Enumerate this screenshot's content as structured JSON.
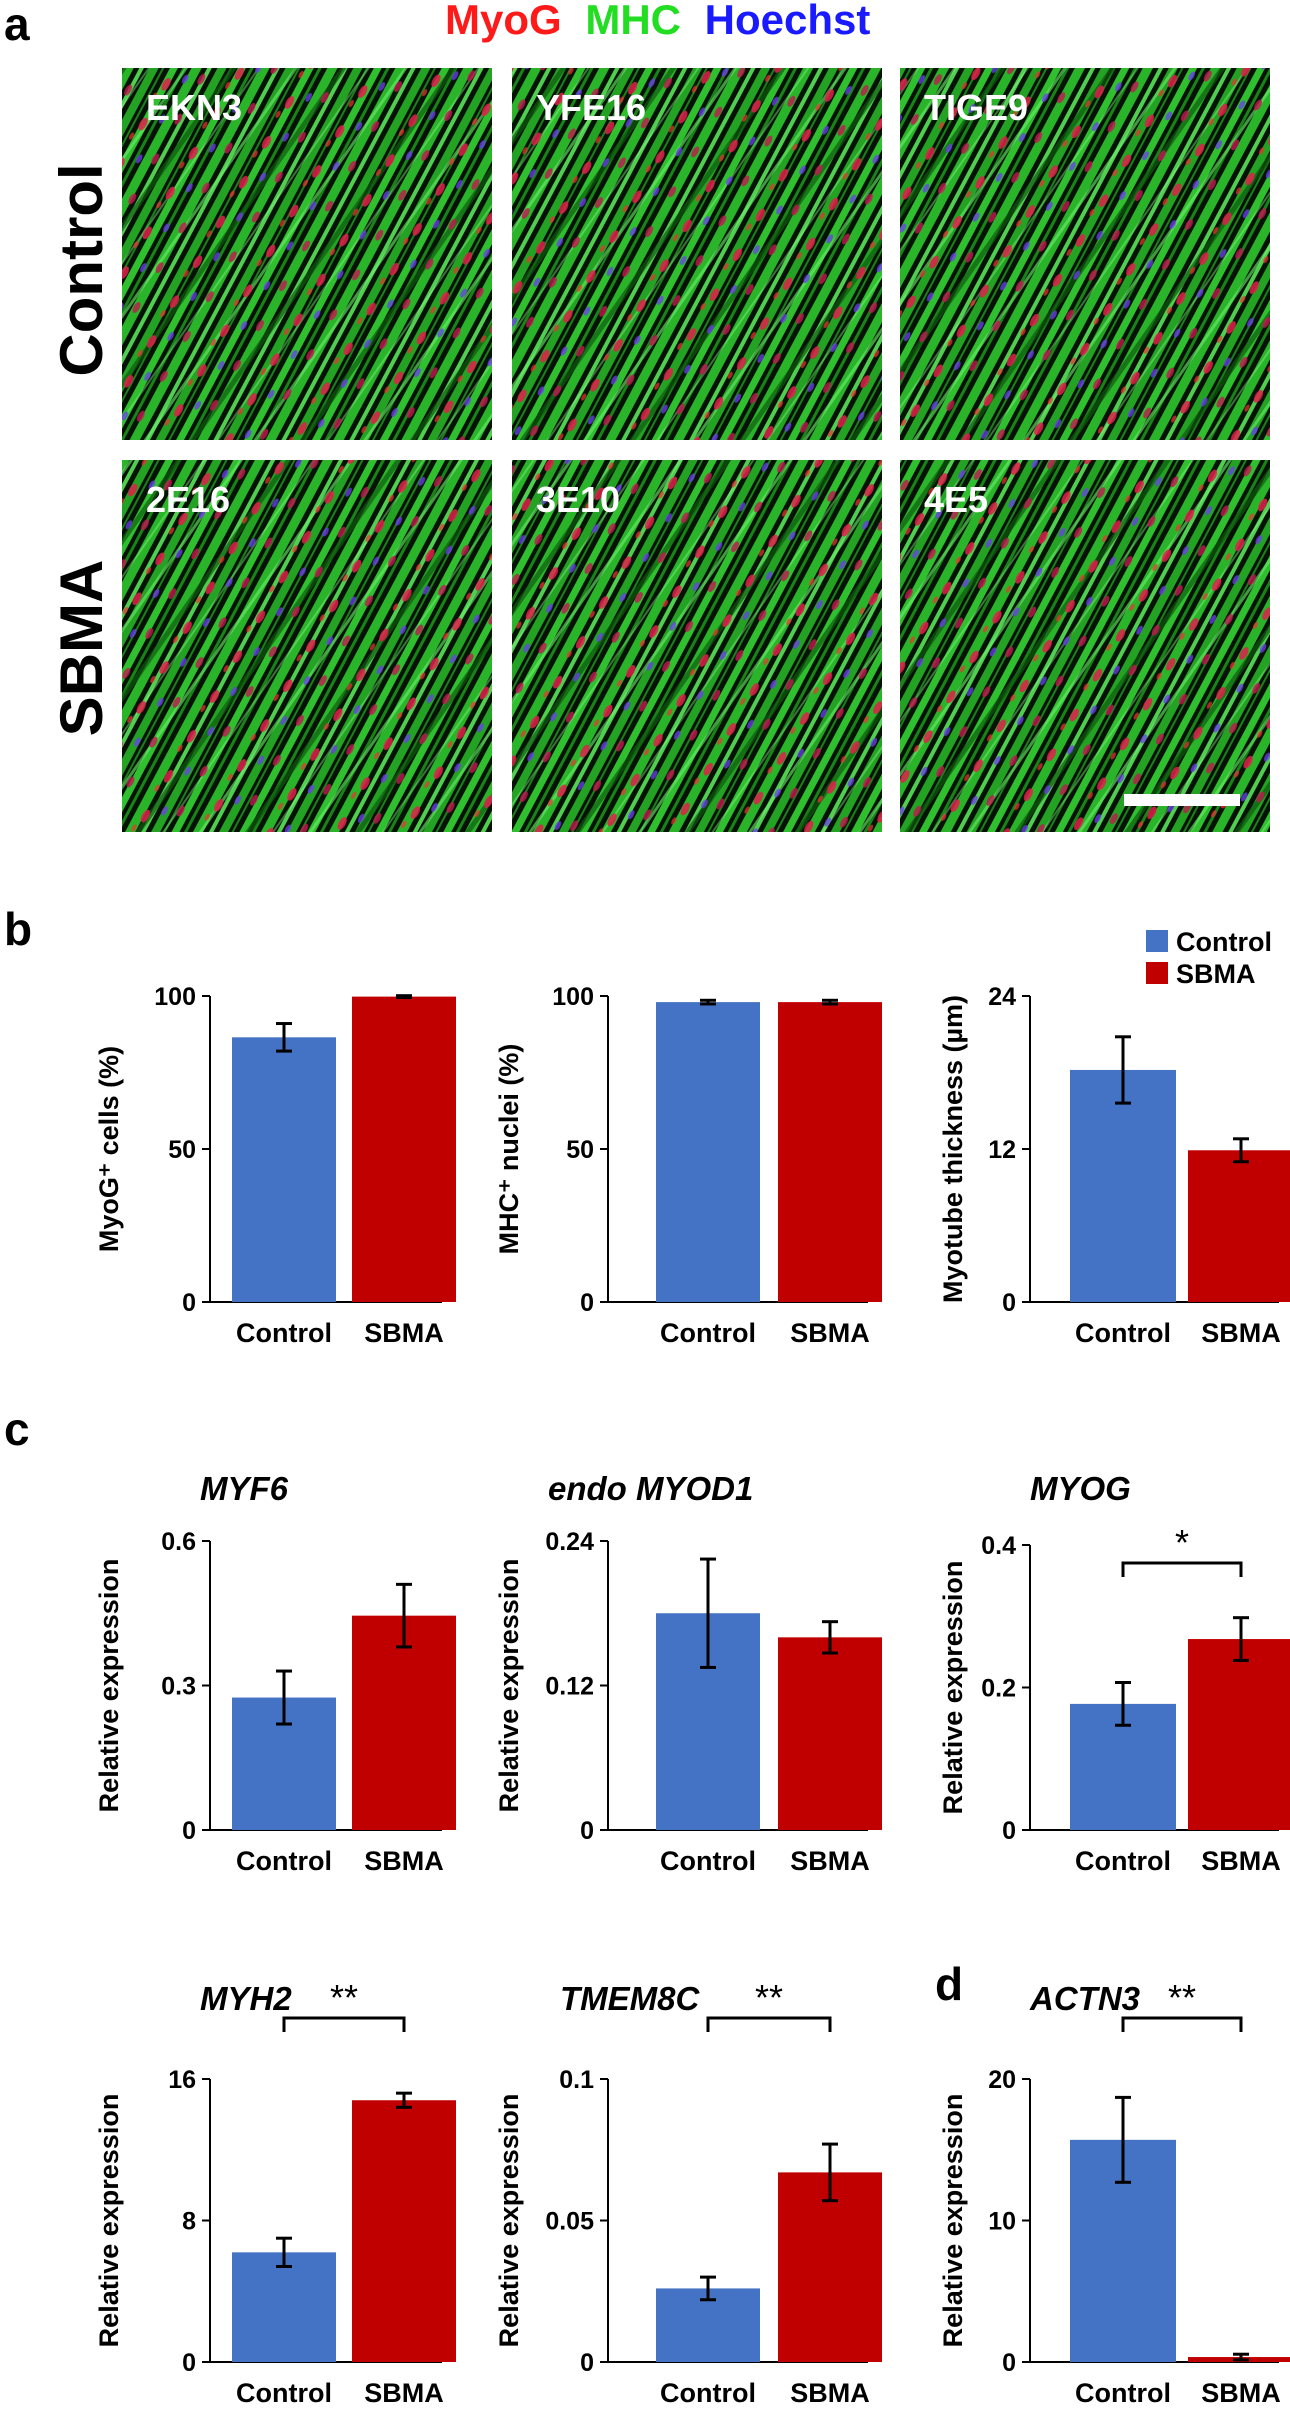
{
  "panels": {
    "a": "a",
    "b": "b",
    "c": "c",
    "d": "d"
  },
  "stain_header": [
    {
      "text": "MyoG",
      "color": "#ff1a1a"
    },
    {
      "text": "MHC",
      "color": "#22dd22"
    },
    {
      "text": "Hoechst",
      "color": "#1a1aff"
    }
  ],
  "micrographs": {
    "rows": [
      "Control",
      "SBMA"
    ],
    "cells": [
      [
        "EKN3",
        "YFE16",
        "TIGE9"
      ],
      [
        "2E16",
        "3E10",
        "4E5"
      ]
    ]
  },
  "colors": {
    "control": "#4472c4",
    "sbma": "#c00000",
    "muscle_green": "#1fc41f",
    "background_black": "#000000"
  },
  "legend": {
    "entries": [
      {
        "name": "Control",
        "color": "#4472c4"
      },
      {
        "name": "SBMA",
        "color": "#c00000"
      }
    ]
  },
  "chart_data": [
    {
      "id": "b1",
      "panel": "b",
      "type": "bar",
      "title": "",
      "ylabel": "MyoG⁺ cells (%)",
      "categories": [
        "Control",
        "SBMA"
      ],
      "values": [
        86.5,
        99.8
      ],
      "errors": [
        4.5,
        0.3
      ],
      "ylim": [
        0,
        100
      ],
      "yticks": [
        0,
        50,
        100
      ],
      "significance": ""
    },
    {
      "id": "b2",
      "panel": "b",
      "type": "bar",
      "title": "",
      "ylabel": "MHC⁺ nuclei (%)",
      "categories": [
        "Control",
        "SBMA"
      ],
      "values": [
        98,
        98
      ],
      "errors": [
        0.6,
        0.6
      ],
      "ylim": [
        0,
        100
      ],
      "yticks": [
        0,
        50,
        100
      ],
      "significance": ""
    },
    {
      "id": "b3",
      "panel": "b",
      "type": "bar",
      "title": "",
      "ylabel": "Myotube thickness (µm)",
      "categories": [
        "Control",
        "SBMA"
      ],
      "values": [
        18.2,
        11.9
      ],
      "errors": [
        2.6,
        0.9
      ],
      "ylim": [
        0,
        24
      ],
      "yticks": [
        0,
        12,
        24
      ],
      "significance": ""
    },
    {
      "id": "c1",
      "panel": "c",
      "type": "bar",
      "title": "MYF6",
      "ylabel": "Relative expression",
      "categories": [
        "Control",
        "SBMA"
      ],
      "values": [
        0.275,
        0.445
      ],
      "errors": [
        0.055,
        0.065
      ],
      "ylim": [
        0,
        0.6
      ],
      "yticks": [
        0,
        0.3,
        0.6
      ],
      "significance": ""
    },
    {
      "id": "c2",
      "panel": "c",
      "type": "bar",
      "title": "endo MYOD1",
      "ylabel": "Relative expression",
      "categories": [
        "Control",
        "SBMA"
      ],
      "values": [
        0.18,
        0.16
      ],
      "errors": [
        0.045,
        0.013
      ],
      "ylim": [
        0,
        0.24
      ],
      "yticks": [
        0,
        0.12,
        0.24
      ],
      "significance": ""
    },
    {
      "id": "c3",
      "panel": "c",
      "type": "bar",
      "title": "MYOG",
      "ylabel": "Relative expression",
      "categories": [
        "Control",
        "SBMA"
      ],
      "values": [
        0.177,
        0.268
      ],
      "errors": [
        0.03,
        0.03
      ],
      "ylim": [
        0,
        0.4
      ],
      "yticks": [
        0,
        0.2,
        0.4
      ],
      "significance": "*"
    },
    {
      "id": "c4",
      "panel": "c",
      "type": "bar",
      "title": "MYH2",
      "ylabel": "Relative expression",
      "categories": [
        "Control",
        "SBMA"
      ],
      "values": [
        6.2,
        14.8
      ],
      "errors": [
        0.8,
        0.4
      ],
      "ylim": [
        0,
        16
      ],
      "yticks": [
        0,
        8,
        16
      ],
      "significance": "**"
    },
    {
      "id": "c5",
      "panel": "c",
      "type": "bar",
      "title": "TMEM8C",
      "ylabel": "Relative expression",
      "categories": [
        "Control",
        "SBMA"
      ],
      "values": [
        0.026,
        0.067
      ],
      "errors": [
        0.004,
        0.01
      ],
      "ylim": [
        0,
        0.1
      ],
      "yticks": [
        0,
        0.05,
        0.1
      ],
      "significance": "**"
    },
    {
      "id": "d1",
      "panel": "d",
      "type": "bar",
      "title": "ACTN3",
      "ylabel": "Relative expression",
      "categories": [
        "Control",
        "SBMA"
      ],
      "values": [
        15.7,
        0.35
      ],
      "errors": [
        3.0,
        0.2
      ],
      "ylim": [
        0,
        20
      ],
      "yticks": [
        0,
        10,
        20
      ],
      "significance": "**"
    }
  ]
}
